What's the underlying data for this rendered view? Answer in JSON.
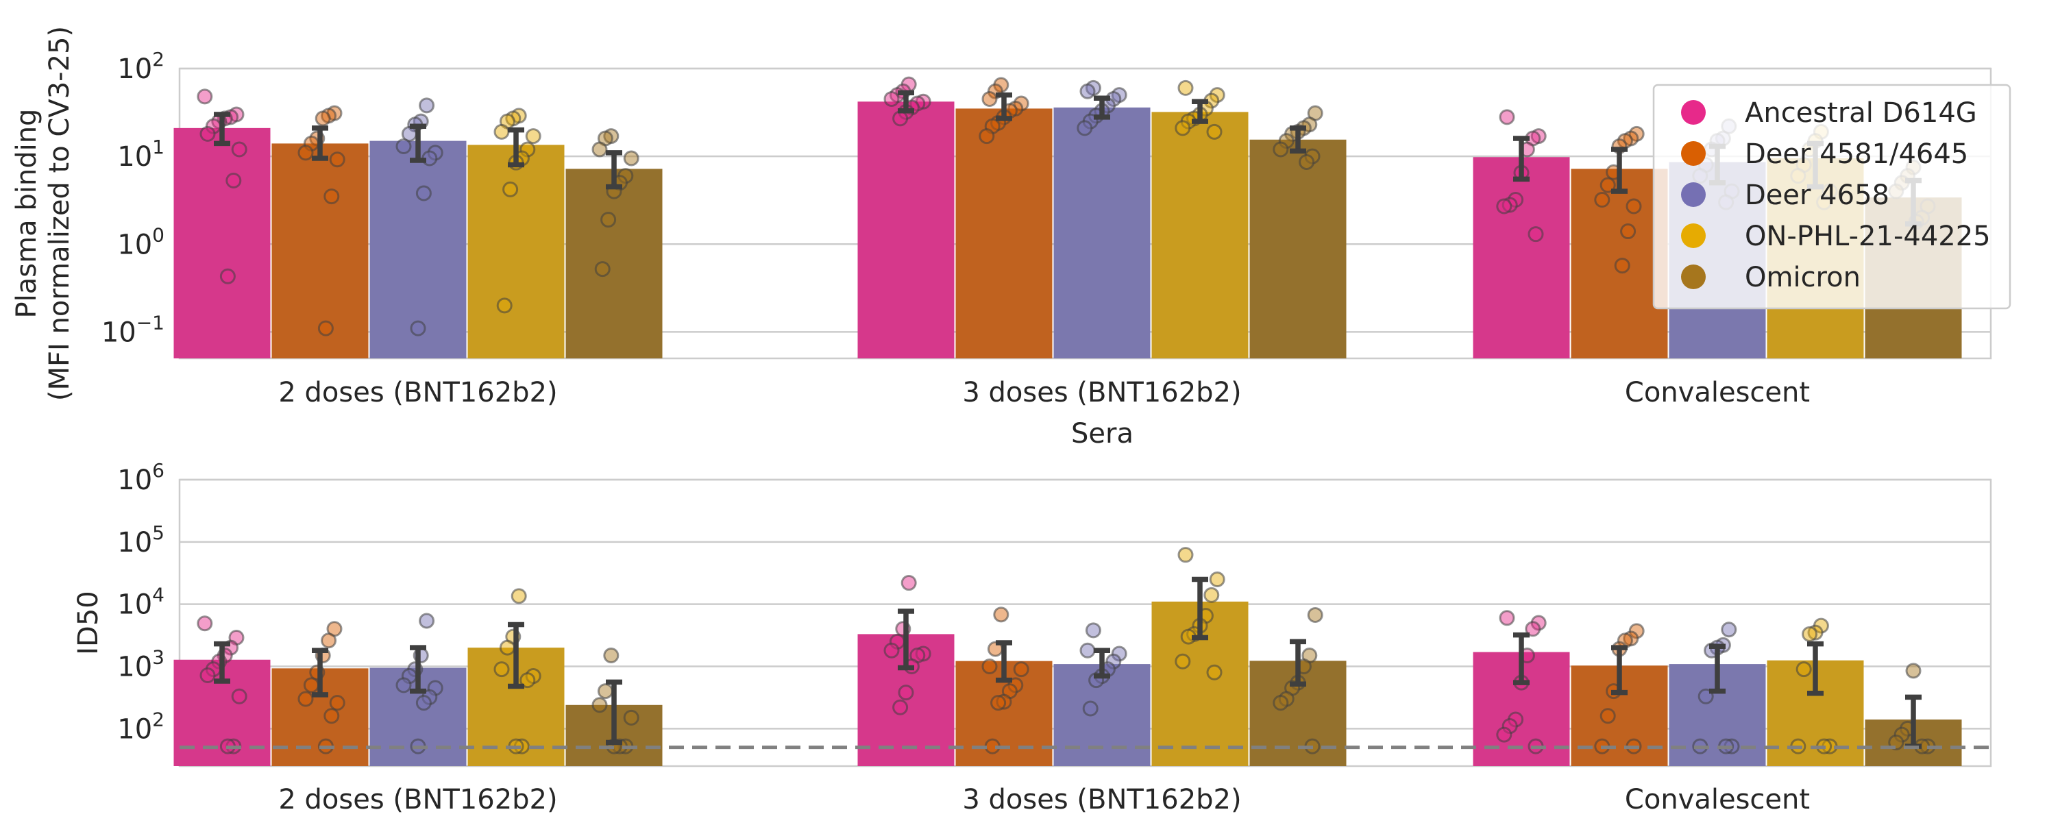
{
  "colors": {
    "series": [
      "#D6388B",
      "#C0621F",
      "#7B78AE",
      "#C99C1F",
      "#94712D"
    ],
    "legend_markers": [
      "#E7298A",
      "#D95F02",
      "#7570B3",
      "#E6AB02",
      "#A6761D"
    ],
    "grid": "#cccccc",
    "frame": "#cccccc",
    "errorbar": "#3f3f3f",
    "threshold": "#808080"
  },
  "legend": {
    "placement": "top-right of upper panel",
    "entries": [
      "Ancestral D614G",
      "Deer 4581/4645",
      "Deer 4658",
      "ON-PHL-21-44225",
      "Omicron"
    ]
  },
  "chart_data": [
    {
      "type": "bar",
      "title": "",
      "xlabel": "Sera",
      "ylabel": "Plasma binding\n(MFI normalized to CV3-25)",
      "yscale": "log",
      "ylim": [
        0.05,
        100
      ],
      "yticks": [
        {
          "value": 0.1,
          "base": "10",
          "exp": "−1"
        },
        {
          "value": 1,
          "base": "10",
          "exp": "0"
        },
        {
          "value": 10,
          "base": "10",
          "exp": "1"
        },
        {
          "value": 100,
          "base": "10",
          "exp": "2"
        }
      ],
      "categories": [
        "2 doses (BNT162b2)",
        "3 doses (BNT162b2)",
        "Convalescent"
      ],
      "grid": true,
      "series": [
        {
          "name": "Ancestral D614G",
          "values": [
            21,
            42,
            9.8
          ],
          "err_low": [
            14,
            33,
            5.5
          ],
          "err_high": [
            30,
            53,
            16
          ],
          "points": [
            [
              48,
              30,
              28,
              27,
              25,
              22,
              18,
              12,
              5.3,
              0.43
            ],
            [
              66,
              55,
              50,
              45,
              42,
              40,
              36,
              32,
              27
            ],
            [
              28,
              17,
              16,
              12,
              6.5,
              3.2,
              2.8,
              2.7,
              1.3
            ]
          ]
        },
        {
          "name": "Deer 4581/4645",
          "values": [
            14,
            35,
            7.2
          ],
          "err_low": [
            9.5,
            27,
            4
          ],
          "err_high": [
            21,
            50,
            12
          ],
          "points": [
            [
              31,
              29,
              27,
              16,
              14,
              11,
              9.2,
              3.5,
              0.11
            ],
            [
              65,
              55,
              45,
              40,
              35,
              33,
              28,
              24,
              22,
              17
            ],
            [
              18,
              16,
              15,
              13,
              6.6,
              4.7,
              3.2,
              2.7,
              1.4,
              0.57
            ]
          ]
        },
        {
          "name": "Deer 4658",
          "values": [
            15,
            36,
            8.6
          ],
          "err_low": [
            9,
            28,
            5
          ],
          "err_high": [
            22,
            46,
            13
          ],
          "points": [
            [
              38,
              25,
              23,
              18,
              13,
              11,
              9.5,
              3.8,
              0.11
            ],
            [
              60,
              55,
              50,
              45,
              38,
              33,
              29,
              25,
              21
            ],
            [
              22,
              16,
              15,
              12,
              8,
              6,
              4,
              3
            ]
          ]
        },
        {
          "name": "ON-PHL-21-44225",
          "values": [
            13.5,
            32,
            9.5
          ],
          "err_low": [
            8,
            25,
            4.5
          ],
          "err_high": [
            20,
            42,
            14
          ],
          "points": [
            [
              29,
              27,
              25,
              19,
              17,
              12,
              9.5,
              8.5,
              4.2,
              0.2
            ],
            [
              60,
              50,
              43,
              35,
              30,
              27,
              25,
              21,
              19
            ],
            [
              19,
              15,
              12,
              8,
              6,
              4,
              3
            ]
          ]
        },
        {
          "name": "Omicron",
          "values": [
            7.2,
            15.5,
            3.4
          ],
          "err_low": [
            4.5,
            11.5,
            1.7
          ],
          "err_high": [
            11,
            21,
            5.3
          ],
          "points": [
            [
              17,
              16,
              12,
              9.5,
              6,
              5,
              4,
              1.9,
              0.52
            ],
            [
              31,
              23,
              21,
              19,
              18,
              15,
              12,
              10,
              8.6
            ],
            [
              7.5,
              6,
              5,
              4,
              2.7,
              2,
              1.8
            ]
          ]
        }
      ]
    },
    {
      "type": "bar",
      "title": "",
      "xlabel": "",
      "ylabel": "ID50",
      "yscale": "log",
      "ylim": [
        25,
        1000000
      ],
      "yticks": [
        {
          "value": 100,
          "base": "10",
          "exp": "2"
        },
        {
          "value": 1000,
          "base": "10",
          "exp": "3"
        },
        {
          "value": 10000,
          "base": "10",
          "exp": "4"
        },
        {
          "value": 100000,
          "base": "10",
          "exp": "5"
        },
        {
          "value": 1000000,
          "base": "10",
          "exp": "6"
        }
      ],
      "threshold": 50,
      "categories": [
        "2 doses (BNT162b2)",
        "3 doses (BNT162b2)",
        "Convalescent"
      ],
      "grid": true,
      "series": [
        {
          "name": "Ancestral D614G",
          "values": [
            1280,
            3300,
            1700
          ],
          "err_low": [
            580,
            950,
            550
          ],
          "err_high": [
            2300,
            7700,
            3200
          ],
          "points": [
            [
              4900,
              2900,
              2000,
              1500,
              1200,
              900,
              720,
              330,
              52,
              52
            ],
            [
              22000,
              4000,
              2500,
              1800,
              1600,
              1500,
              1000,
              380,
              220
            ],
            [
              6000,
              5000,
              4000,
              1500,
              550,
              140,
              110,
              80,
              52
            ]
          ]
        },
        {
          "name": "Deer 4581/4645",
          "values": [
            930,
            1220,
            1030
          ],
          "err_low": [
            350,
            600,
            380
          ],
          "err_high": [
            1800,
            2400,
            2000
          ],
          "points": [
            [
              4000,
              2600,
              1500,
              800,
              500,
              300,
              260,
              160,
              52
            ],
            [
              6800,
              1900,
              1000,
              900,
              500,
              400,
              270,
              260,
              52
            ],
            [
              3700,
              2800,
              2600,
              1900,
              400,
              160,
              52,
              52
            ]
          ]
        },
        {
          "name": "Deer 4658",
          "values": [
            950,
            1090,
            1090
          ],
          "err_low": [
            400,
            700,
            400
          ],
          "err_high": [
            2000,
            1800,
            2100
          ],
          "points": [
            [
              5400,
              1500,
              900,
              700,
              500,
              450,
              320,
              260,
              52
            ],
            [
              3800,
              1800,
              1600,
              1200,
              900,
              700,
              600,
              210
            ],
            [
              3900,
              2200,
              2000,
              1800,
              330,
              52,
              52,
              52
            ]
          ]
        },
        {
          "name": "ON-PHL-21-44225",
          "values": [
            2000,
            11000,
            1250
          ],
          "err_low": [
            480,
            2900,
            370
          ],
          "err_high": [
            4700,
            25000,
            2300
          ],
          "points": [
            [
              13500,
              3000,
              2000,
              900,
              700,
              600,
              52,
              52
            ],
            [
              62000,
              25000,
              14000,
              6500,
              4500,
              3300,
              3000,
              1200,
              800
            ],
            [
              4500,
              3500,
              3300,
              900,
              52,
              52,
              52
            ]
          ]
        },
        {
          "name": "Omicron",
          "values": [
            240,
            1230,
            140
          ],
          "err_low": [
            60,
            520,
            52
          ],
          "err_high": [
            560,
            2500,
            320
          ],
          "points": [
            [
              1500,
              400,
              240,
              150,
              52,
              52,
              52
            ],
            [
              6700,
              1500,
              1000,
              550,
              450,
              300,
              260,
              52
            ],
            [
              850,
              100,
              80,
              60,
              52,
              52
            ]
          ]
        }
      ]
    }
  ]
}
